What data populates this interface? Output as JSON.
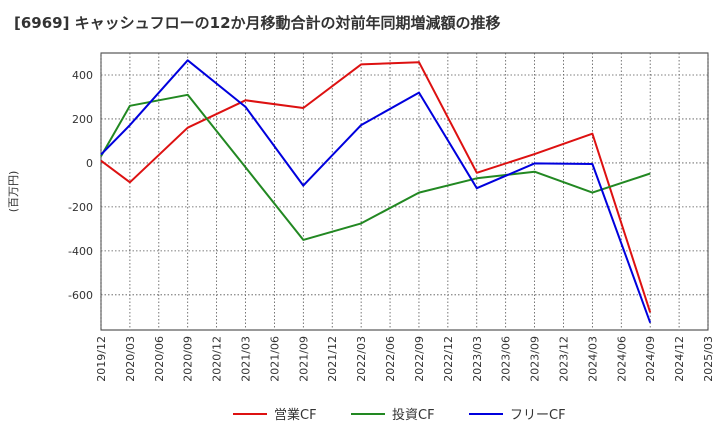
{
  "chart_data": {
    "type": "line",
    "title": "[6969]  キャッシュフローの12か月移動合計の対前年同期増減額の推移",
    "ylabel": "(百万円)",
    "xlabel": "",
    "ylim": [
      -760,
      500
    ],
    "yticks": [
      400,
      200,
      0,
      -200,
      -400,
      -600
    ],
    "ytick_labels": [
      "400",
      "200",
      "0",
      "-200",
      "-400",
      "-600"
    ],
    "categories": [
      "2019/12",
      "2020/03",
      "2020/06",
      "2020/09",
      "2020/12",
      "2021/03",
      "2021/06",
      "2021/09",
      "2021/12",
      "2022/03",
      "2022/06",
      "2022/09",
      "2022/12",
      "2023/03",
      "2023/06",
      "2023/09",
      "2023/12",
      "2024/03",
      "2024/06",
      "2024/09",
      "2024/12",
      "2025/03"
    ],
    "grid": true,
    "legend_position": "bottom",
    "series": [
      {
        "name": "営業CF",
        "color": "#dd1111",
        "values": [
          10,
          -88,
          null,
          160,
          null,
          285,
          null,
          250,
          null,
          448,
          null,
          458,
          null,
          -45,
          null,
          40,
          null,
          133,
          null,
          -680,
          null,
          null
        ]
      },
      {
        "name": "投資CF",
        "color": "#228822",
        "values": [
          30,
          260,
          null,
          310,
          null,
          -20,
          null,
          -350,
          null,
          -275,
          null,
          -135,
          null,
          -70,
          null,
          -40,
          null,
          -135,
          null,
          -48,
          null,
          null
        ]
      },
      {
        "name": "フリーCF",
        "color": "#0000dd",
        "values": [
          38,
          172,
          null,
          467,
          null,
          255,
          null,
          -103,
          null,
          172,
          null,
          320,
          null,
          -115,
          null,
          -2,
          null,
          -5,
          null,
          -727,
          null,
          null
        ]
      }
    ]
  }
}
